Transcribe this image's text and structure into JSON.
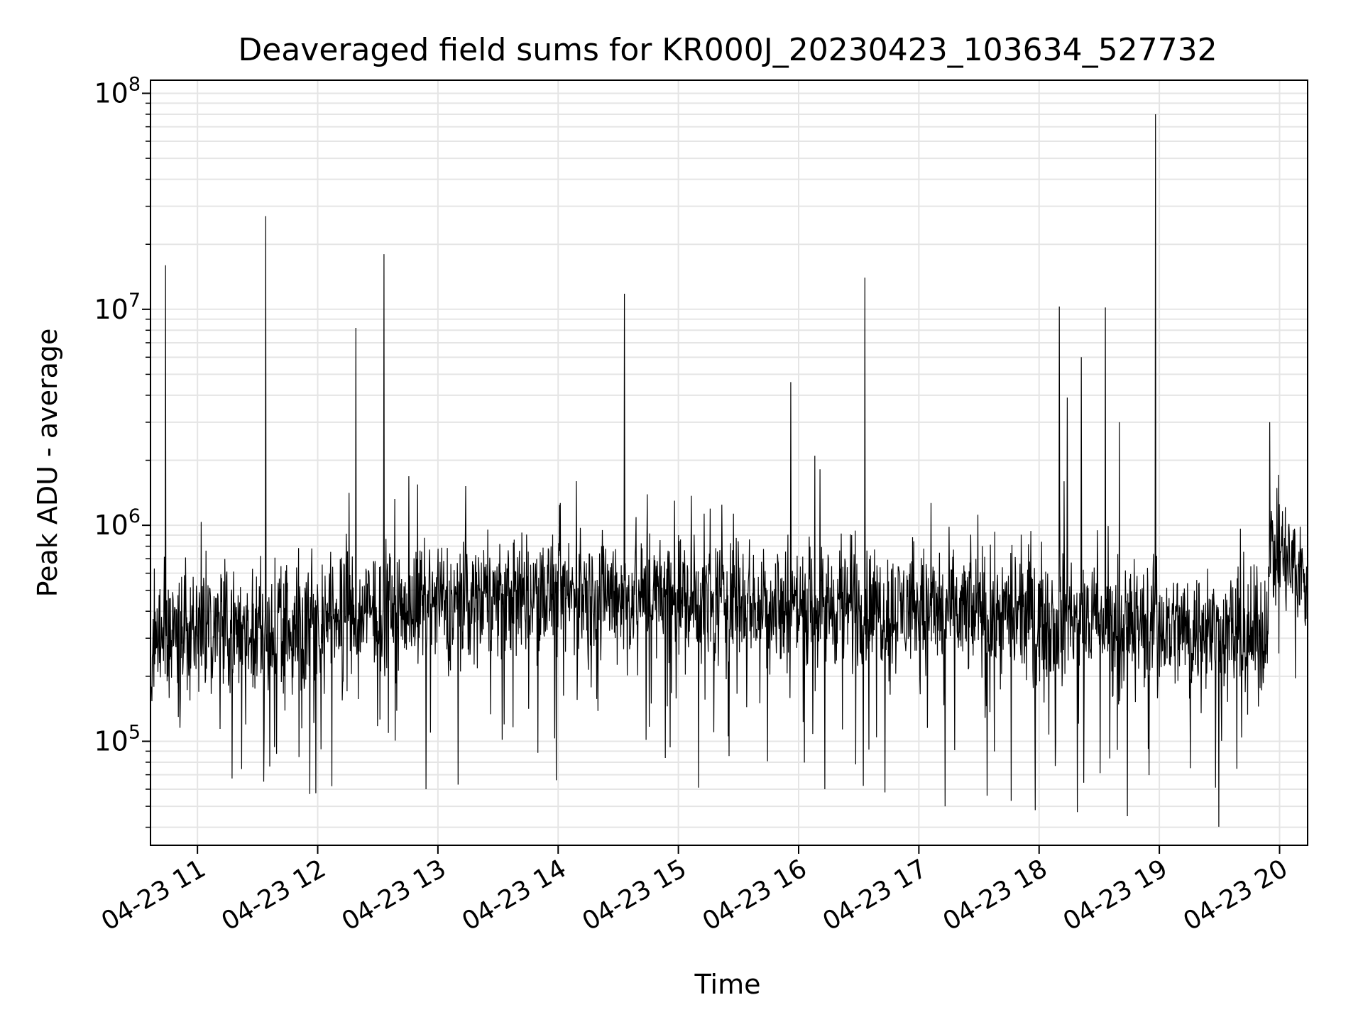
{
  "chart_data": {
    "type": "line",
    "title": "Deaveraged field sums for KR000J_20230423_103634_527732",
    "xlabel": "Time",
    "ylabel": "Peak ADU - average",
    "yscale": "log",
    "ylim": [
      33000,
      115000000
    ],
    "xlim": [
      "04-23 10:36:34",
      "04-23 20:14:00"
    ],
    "grid": true,
    "line_color": "#000000",
    "grid_color": "#e5e5e5",
    "x_ticks": [
      "04-23 11",
      "04-23 12",
      "04-23 13",
      "04-23 14",
      "04-23 15",
      "04-23 16",
      "04-23 17",
      "04-23 18",
      "04-23 19",
      "04-23 20"
    ],
    "y_ticks": [
      {
        "base": "10",
        "exp": "5",
        "value": 100000
      },
      {
        "base": "10",
        "exp": "6",
        "value": 1000000
      },
      {
        "base": "10",
        "exp": "7",
        "value": 10000000
      },
      {
        "base": "10",
        "exp": "8",
        "value": 100000000
      }
    ],
    "series": [
      {
        "baseline": [
          [
            "04-23 10:36",
            300000
          ],
          [
            "04-23 11:00",
            340000
          ],
          [
            "04-23 11:30",
            320000
          ],
          [
            "04-23 12:00",
            350000
          ],
          [
            "04-23 12:30",
            400000
          ],
          [
            "04-23 13:00",
            430000
          ],
          [
            "04-23 13:30",
            460000
          ],
          [
            "04-23 14:00",
            480000
          ],
          [
            "04-23 14:30",
            470000
          ],
          [
            "04-23 15:00",
            450000
          ],
          [
            "04-23 15:30",
            440000
          ],
          [
            "04-23 16:00",
            430000
          ],
          [
            "04-23 16:30",
            420000
          ],
          [
            "04-23 17:00",
            400000
          ],
          [
            "04-23 17:30",
            390000
          ],
          [
            "04-23 18:00",
            380000
          ],
          [
            "04-23 18:30",
            360000
          ],
          [
            "04-23 19:00",
            340000
          ],
          [
            "04-23 19:30",
            320000
          ],
          [
            "04-23 19:53",
            300000
          ],
          [
            "04-23 19:55",
            800000
          ],
          [
            "04-23 20:14",
            550000
          ]
        ],
        "spikes": [
          [
            "04-23 10:44",
            16000000
          ],
          [
            "04-23 11:34",
            27000000
          ],
          [
            "04-23 12:19",
            8200000
          ],
          [
            "04-23 12:33",
            18000000
          ],
          [
            "04-23 14:09",
            1600000
          ],
          [
            "04-23 14:33",
            11800000
          ],
          [
            "04-23 14:58",
            1300000
          ],
          [
            "04-23 15:56",
            4600000
          ],
          [
            "04-23 16:08",
            2100000
          ],
          [
            "04-23 16:33",
            14000000
          ],
          [
            "04-23 18:10",
            10300000
          ],
          [
            "04-23 18:14",
            3900000
          ],
          [
            "04-23 18:21",
            6000000
          ],
          [
            "04-23 18:33",
            10200000
          ],
          [
            "04-23 18:40",
            3000000
          ],
          [
            "04-23 18:58",
            80000000
          ],
          [
            "04-23 19:55",
            3000000
          ]
        ],
        "dips": [
          [
            "04-23 11:33",
            65000
          ],
          [
            "04-23 11:56",
            57000
          ],
          [
            "04-23 12:07",
            62000
          ],
          [
            "04-23 12:54",
            60000
          ],
          [
            "04-23 13:10",
            63000
          ],
          [
            "04-23 13:59",
            66000
          ],
          [
            "04-23 15:10",
            61000
          ],
          [
            "04-23 16:13",
            60000
          ],
          [
            "04-23 16:43",
            58000
          ],
          [
            "04-23 17:13",
            50000
          ],
          [
            "04-23 17:34",
            56000
          ],
          [
            "04-23 17:46",
            53000
          ],
          [
            "04-23 17:58",
            48000
          ],
          [
            "04-23 18:19",
            47000
          ],
          [
            "04-23 18:44",
            45000
          ],
          [
            "04-23 19:28",
            61000
          ]
        ]
      }
    ]
  }
}
